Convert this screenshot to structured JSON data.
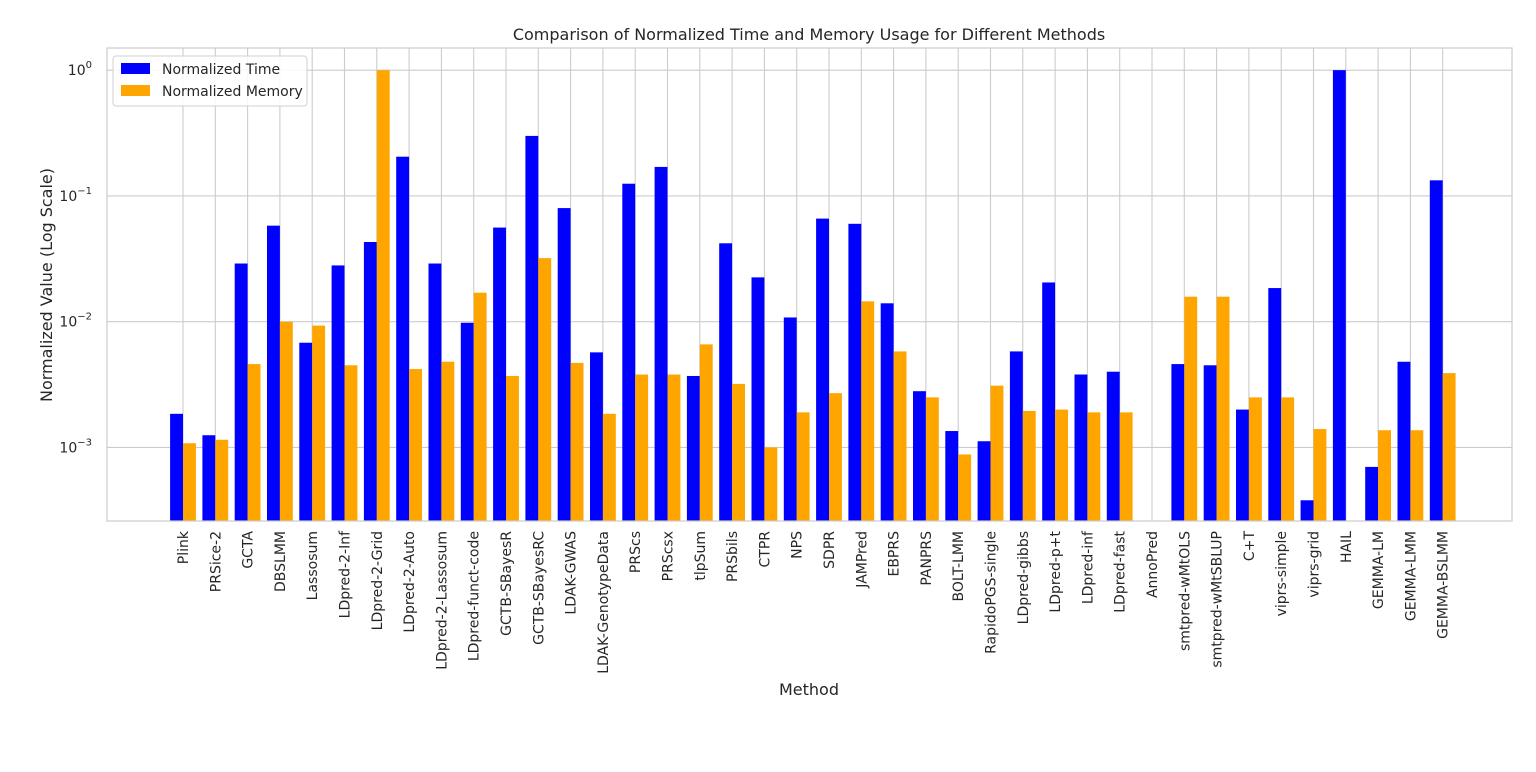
{
  "chart_data": {
    "type": "bar",
    "title": "Comparison of Normalized Time and Memory Usage for Different Methods",
    "xlabel": "Method",
    "ylabel": "Normalized Value (Log Scale)",
    "yscale": "log",
    "ylim": [
      0.00026,
      1.5
    ],
    "yticks": [
      {
        "value": 0.001,
        "base": "10",
        "exp": "−3"
      },
      {
        "value": 0.01,
        "base": "10",
        "exp": "−2"
      },
      {
        "value": 0.1,
        "base": "10",
        "exp": "−1"
      },
      {
        "value": 1,
        "base": "10",
        "exp": "0"
      }
    ],
    "grid": true,
    "legend_position": "top-left",
    "categories": [
      "Plink",
      "PRSice-2",
      "GCTA",
      "DBSLMM",
      "Lassosum",
      "LDpred-2-Inf",
      "LDpred-2-Grid",
      "LDpred-2-Auto",
      "LDpred-2-Lassosum",
      "LDpred-funct-code",
      "GCTB-SBayesR",
      "GCTB-SBayesRC",
      "LDAK-GWAS",
      "LDAK-GenotypeData",
      "PRScs",
      "PRScsx",
      "tlpSum",
      "PRSbils",
      "CTPR",
      "NPS",
      "SDPR",
      "JAMPred",
      "EBPRS",
      "PANPRS",
      "BOLT-LMM",
      "RapidoPGS-single",
      "LDpred-gibbs",
      "LDpred-p+t",
      "LDpred-inf",
      "LDpred-fast",
      "AnnoPred",
      "smtpred-wMtOLS",
      "smtpred-wMtSBLUP",
      "C+T",
      "viprs-simple",
      "viprs-grid",
      "HAIL",
      "GEMMA-LM",
      "GEMMA-LMM",
      "GEMMA-BSLMM"
    ],
    "series": [
      {
        "name": "Normalized Time",
        "color": "#0000ff",
        "values": [
          0.00185,
          0.00125,
          0.029,
          0.058,
          0.0068,
          0.028,
          0.043,
          0.205,
          0.029,
          0.0098,
          0.056,
          0.3,
          0.08,
          0.0057,
          0.125,
          0.17,
          0.0037,
          0.042,
          0.0225,
          0.0108,
          0.066,
          0.06,
          0.014,
          0.0028,
          0.00135,
          0.00112,
          0.0058,
          0.0205,
          0.0038,
          0.004,
          null,
          0.0046,
          0.0045,
          0.002,
          0.0185,
          0.00038,
          1.0,
          0.0007,
          0.0048,
          0.133
        ]
      },
      {
        "name": "Normalized Memory",
        "color": "#ffa500",
        "values": [
          0.00108,
          0.00115,
          0.0046,
          0.01,
          0.0093,
          0.0045,
          1.0,
          0.0042,
          0.0048,
          0.017,
          0.0037,
          0.032,
          0.0047,
          0.00185,
          0.0038,
          0.0038,
          0.0066,
          0.0032,
          0.001,
          0.0019,
          0.0027,
          0.0145,
          0.0058,
          0.0025,
          0.00088,
          0.0031,
          0.00195,
          0.002,
          0.0019,
          0.0019,
          null,
          0.0158,
          0.0158,
          0.0025,
          0.0025,
          0.0014,
          null,
          0.00137,
          0.00137,
          0.0039
        ]
      }
    ]
  }
}
